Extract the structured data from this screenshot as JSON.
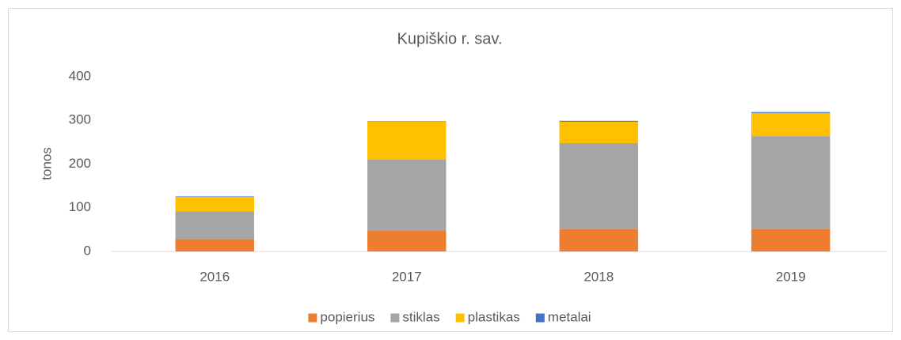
{
  "chart_data": {
    "type": "stacked_bar",
    "title": "Kupiškio r. sav.",
    "y_label": "tonos",
    "categories": [
      "2016",
      "2017",
      "2018",
      "2019"
    ],
    "series": [
      {
        "name": "popierius",
        "color": "#ed7d31",
        "values": [
          28,
          47,
          51,
          51
        ]
      },
      {
        "name": "stiklas",
        "color": "#a5a5a5",
        "values": [
          64,
          163,
          197,
          213
        ]
      },
      {
        "name": "plastikas",
        "color": "#ffc000",
        "values": [
          33,
          87,
          49,
          53
        ]
      },
      {
        "name": "metalai",
        "color": "#4472c4",
        "values": [
          1,
          1,
          2,
          2
        ]
      }
    ],
    "ylim": [
      0,
      400
    ],
    "yticks": [
      0,
      100,
      200,
      300,
      400
    ],
    "grid": false,
    "legend": "bottom"
  }
}
